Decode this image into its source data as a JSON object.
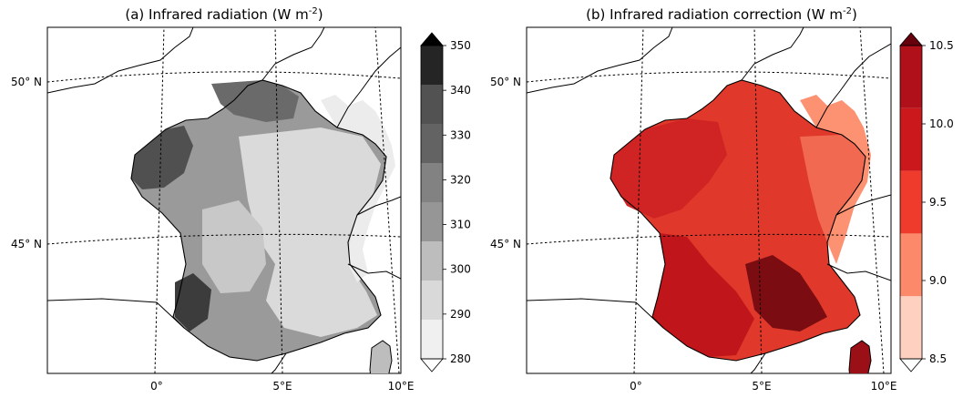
{
  "panels": [
    {
      "id": "a",
      "title_main": "(a) Infrared radiation (W m",
      "title_sup": "-2",
      "title_close": ")",
      "colorbar": {
        "ticks": [
          "350",
          "340",
          "330",
          "320",
          "310",
          "300",
          "290",
          "280"
        ],
        "colors": [
          "#f0f0f0",
          "#d9d9d9",
          "#bdbdbd",
          "#969696",
          "#828282",
          "#636363",
          "#525252",
          "#252525"
        ],
        "extend": "both",
        "arrow_top_color": "#000000",
        "arrow_bottom_color": "#ffffff"
      },
      "lat_labels": [
        "50° N",
        "45° N"
      ],
      "lon_labels": [
        "0°",
        "5°E",
        "10°E"
      ]
    },
    {
      "id": "b",
      "title_main": "(b) Infrared radiation correction (W m",
      "title_sup": "-2",
      "title_close": ")",
      "colorbar": {
        "ticks": [
          "10.5",
          "10.0",
          "9.5",
          "9.0",
          "8.5"
        ],
        "colors": [
          "#fdd0bf",
          "#fc8a6a",
          "#ef3b2c",
          "#cb181d",
          "#b0101a"
        ],
        "extend": "both",
        "arrow_top_color": "#67000d",
        "arrow_bottom_color": "#ffffff"
      },
      "lat_labels": [
        "50° N",
        "45° N"
      ],
      "lon_labels": [
        "0°",
        "5°E",
        "10°E"
      ]
    }
  ]
}
